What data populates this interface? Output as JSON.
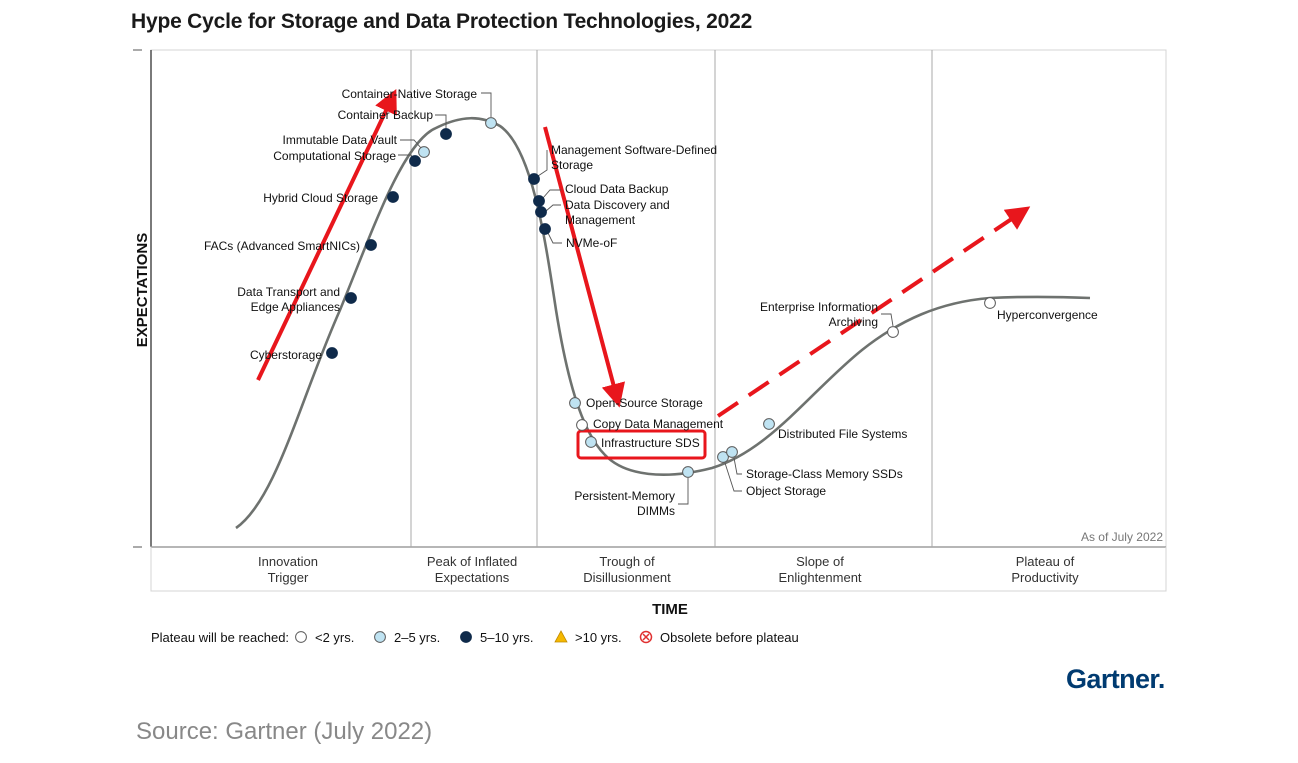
{
  "chart_data": {
    "type": "hype-cycle",
    "title": "Hype Cycle for Storage and Data Protection Technologies, 2022",
    "xlabel": "TIME",
    "ylabel": "EXPECTATIONS",
    "as_of": "As of July 2022",
    "phases": [
      {
        "lines": [
          "Innovation",
          "Trigger"
        ]
      },
      {
        "lines": [
          "Peak of Inflated",
          "Expectations"
        ]
      },
      {
        "lines": [
          "Trough of",
          "Disillusionment"
        ]
      },
      {
        "lines": [
          "Slope of",
          "Enlightenment"
        ]
      },
      {
        "lines": [
          "Plateau of",
          "Productivity"
        ]
      }
    ],
    "legend": {
      "prefix": "Plateau will be reached:",
      "items": [
        {
          "key": "lt2",
          "label": "<2 yrs."
        },
        {
          "key": "2to5",
          "label": "2–5 yrs."
        },
        {
          "key": "5to10",
          "label": "5–10 yrs."
        },
        {
          "key": "gt10",
          "label": ">10 yrs."
        },
        {
          "key": "obsolete",
          "label": "Obsolete before plateau"
        }
      ]
    },
    "marker_colors": {
      "lt2": "#ffffff",
      "2to5": "#bfe3f2",
      "5to10": "#0f2a4a",
      "gt10": "#f5b800",
      "obsolete": "#e03030"
    },
    "technologies": [
      {
        "name": "Cyberstorage",
        "lines": [
          "Cyberstorage"
        ],
        "phase": "Innovation Trigger",
        "plateau": "5to10"
      },
      {
        "name": "Data Transport and Edge Appliances",
        "lines": [
          "Data Transport and",
          "Edge Appliances"
        ],
        "phase": "Innovation Trigger",
        "plateau": "5to10"
      },
      {
        "name": "FACs (Advanced SmartNICs)",
        "lines": [
          "FACs (Advanced SmartNICs)"
        ],
        "phase": "Innovation Trigger",
        "plateau": "5to10"
      },
      {
        "name": "Hybrid Cloud Storage",
        "lines": [
          "Hybrid Cloud Storage"
        ],
        "phase": "Innovation Trigger",
        "plateau": "5to10"
      },
      {
        "name": "Computational Storage",
        "lines": [
          "Computational Storage"
        ],
        "phase": "Peak of Inflated Expectations",
        "plateau": "5to10"
      },
      {
        "name": "Immutable Data Vault",
        "lines": [
          "Immutable Data Vault"
        ],
        "phase": "Peak of Inflated Expectations",
        "plateau": "2to5"
      },
      {
        "name": "Container Backup",
        "lines": [
          "Container Backup"
        ],
        "phase": "Peak of Inflated Expectations",
        "plateau": "5to10"
      },
      {
        "name": "Container-Native Storage",
        "lines": [
          "Container-Native Storage"
        ],
        "phase": "Peak of Inflated Expectations",
        "plateau": "2to5"
      },
      {
        "name": "Management Software-Defined Storage",
        "lines": [
          "Management Software-Defined",
          "Storage"
        ],
        "phase": "Trough of Disillusionment",
        "plateau": "5to10"
      },
      {
        "name": "Cloud Data Backup",
        "lines": [
          "Cloud Data Backup"
        ],
        "phase": "Trough of Disillusionment",
        "plateau": "5to10"
      },
      {
        "name": "Data Discovery and Management",
        "lines": [
          "Data Discovery and",
          "Management"
        ],
        "phase": "Trough of Disillusionment",
        "plateau": "5to10"
      },
      {
        "name": "NVMe-oF",
        "lines": [
          "NVMe-oF"
        ],
        "phase": "Trough of Disillusionment",
        "plateau": "5to10"
      },
      {
        "name": "Open-Source Storage",
        "lines": [
          "Open-Source Storage"
        ],
        "phase": "Trough of Disillusionment",
        "plateau": "2to5"
      },
      {
        "name": "Copy Data Management",
        "lines": [
          "Copy Data Management"
        ],
        "phase": "Trough of Disillusionment",
        "plateau": "lt2"
      },
      {
        "name": "Infrastructure SDS",
        "lines": [
          "Infrastructure SDS"
        ],
        "phase": "Trough of Disillusionment",
        "plateau": "2to5",
        "highlighted": true
      },
      {
        "name": "Persistent-Memory DIMMs",
        "lines": [
          "Persistent-Memory",
          "DIMMs"
        ],
        "phase": "Trough of Disillusionment",
        "plateau": "2to5"
      },
      {
        "name": "Object Storage",
        "lines": [
          "Object Storage"
        ],
        "phase": "Slope of Enlightenment",
        "plateau": "2to5"
      },
      {
        "name": "Storage-Class Memory SSDs",
        "lines": [
          "Storage-Class Memory SSDs"
        ],
        "phase": "Slope of Enlightenment",
        "plateau": "2to5"
      },
      {
        "name": "Distributed File Systems",
        "lines": [
          "Distributed File Systems"
        ],
        "phase": "Slope of Enlightenment",
        "plateau": "2to5"
      },
      {
        "name": "Enterprise Information Archiving",
        "lines": [
          "Enterprise Information",
          "Archiving"
        ],
        "phase": "Slope of Enlightenment",
        "plateau": "lt2"
      },
      {
        "name": "Hyperconvergence",
        "lines": [
          "Hyperconvergence"
        ],
        "phase": "Plateau of Productivity",
        "plateau": "lt2"
      }
    ]
  },
  "source": "Source: Gartner (July 2022)",
  "brand": "Gartner."
}
